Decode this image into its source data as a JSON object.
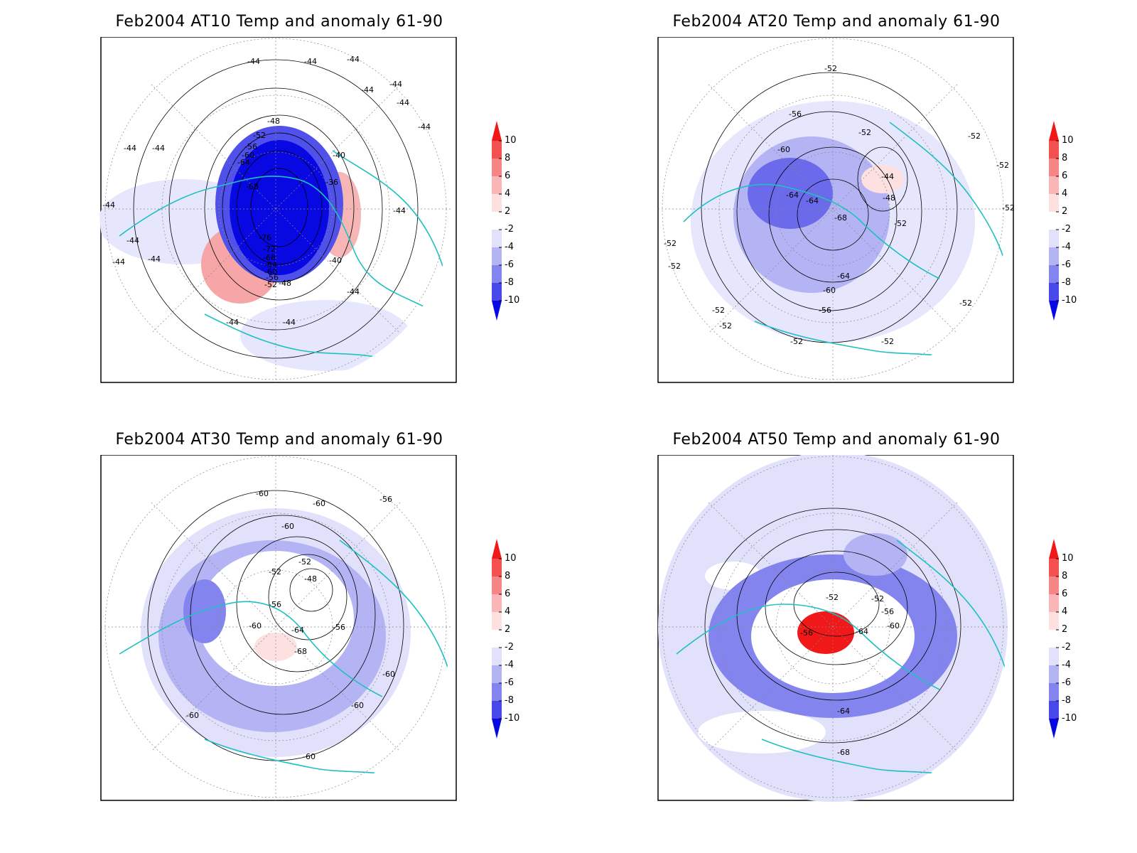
{
  "panels": [
    {
      "title": "Feb2004 AT10 Temp and anomaly 61-90",
      "contour_labels": [
        "-44",
        "-44",
        "-44",
        "-44",
        "-44",
        "-44",
        "-44",
        "-44",
        "-44",
        "-44",
        "-44",
        "-44",
        "-44",
        "-44",
        "-44",
        "-48",
        "-52",
        "-56",
        "-60",
        "-64",
        "-68",
        "-76",
        "-72",
        "-68",
        "-64",
        "-60",
        "-56",
        "-52",
        "-48",
        "-40",
        "-36",
        "-40",
        "-44",
        "-44"
      ]
    },
    {
      "title": "Feb2004 AT20 Temp and anomaly 61-90",
      "contour_labels": [
        "-52",
        "-56",
        "-52",
        "-60",
        "-64",
        "-64",
        "-68",
        "-44",
        "-48",
        "-52",
        "-52",
        "-52",
        "-52",
        "-52",
        "-52",
        "-52",
        "-64",
        "-60",
        "-56",
        "-52",
        "-52",
        "-52",
        "-52"
      ]
    },
    {
      "title": "Feb2004 AT30 Temp and anomaly 61-90",
      "contour_labels": [
        "-60",
        "-60",
        "-56",
        "-60",
        "-52",
        "-52",
        "-48",
        "-56",
        "-60",
        "-64",
        "-56",
        "-68",
        "-60",
        "-60",
        "-60",
        "-60"
      ]
    },
    {
      "title": "Feb2004 AT50 Temp and anomaly 61-90",
      "contour_labels": [
        "-52",
        "-52",
        "-56",
        "-56",
        "-64",
        "-60",
        "-64",
        "-68"
      ]
    }
  ],
  "colorbar": {
    "ticks": [
      "10",
      "8",
      "6",
      "4",
      "2",
      "-2",
      "-4",
      "-6",
      "-8",
      "-10"
    ],
    "colors": [
      "#f01818",
      "#f35050",
      "#f68686",
      "#fab6b6",
      "#fde0e0",
      "#ffffff",
      "#e1e1fb",
      "#b4b4f5",
      "#8484ef",
      "#4848e9",
      "#0808e2"
    ]
  }
}
